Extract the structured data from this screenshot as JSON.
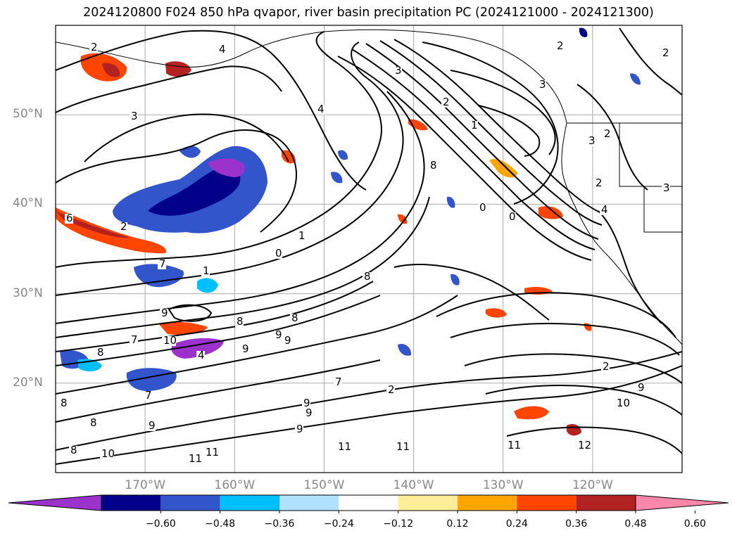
{
  "title": "2024120800 F024 850 hPa qvapor, river basin precipitation PC (2024121000 - 2024121300)",
  "map": {
    "projection": "lat-lon",
    "lon_range": [
      -180,
      -110
    ],
    "lat_range": [
      10,
      60
    ],
    "gridlines": true,
    "lat_labels": [
      "50°N",
      "40°N",
      "30°N",
      "20°N"
    ],
    "lon_labels": [
      "170°W",
      "160°W",
      "150°W",
      "140°W",
      "130°W",
      "120°W"
    ],
    "contour_color": "#000000",
    "contour_labels": [
      "2",
      "2",
      "4",
      "3",
      "3",
      "4",
      "2",
      "1",
      "3",
      "8",
      "0",
      "0",
      "4",
      "2",
      "2",
      "3",
      "1",
      "0",
      "1",
      "2",
      "6",
      "2",
      "7",
      "3",
      "9",
      "8",
      "8",
      "8",
      "7",
      "10",
      "8",
      "9",
      "9",
      "9",
      "4",
      "2",
      "7",
      "7",
      "9",
      "9",
      "11",
      "11",
      "11",
      "11",
      "10",
      "9",
      "2",
      "9",
      "12",
      "10",
      "8",
      "8",
      "8",
      "9",
      "11"
    ]
  },
  "colorbar": {
    "extend": "both",
    "colors": [
      "#9b32cc",
      "#00008b",
      "#3355cc",
      "#00bfff",
      "#b0e2ff",
      "#ffffff",
      "#ffee99",
      "#ffa500",
      "#ff4500",
      "#b22222",
      "#ff88aa"
    ],
    "tick_labels": [
      "−0.60",
      "−0.48",
      "−0.36",
      "−0.24",
      "−0.12",
      "0.12",
      "0.24",
      "0.36",
      "0.48",
      "0.60"
    ]
  }
}
